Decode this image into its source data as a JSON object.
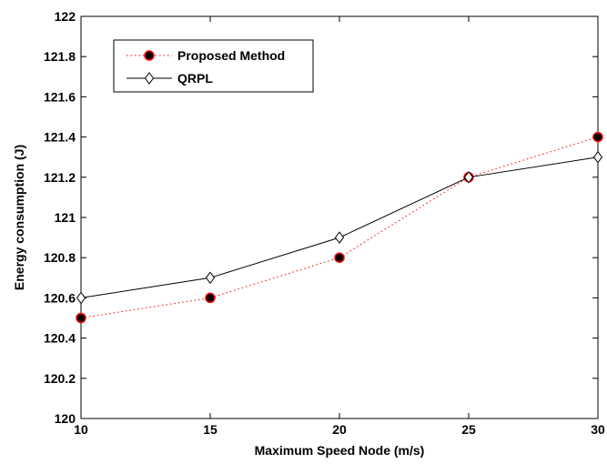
{
  "chart_data": {
    "type": "line",
    "title": "",
    "xlabel": "Maximum Speed Node (m/s)",
    "ylabel": "Energy consumption (J)",
    "x": [
      10,
      15,
      20,
      25,
      30
    ],
    "xlim": [
      10,
      30
    ],
    "ylim": [
      120,
      122
    ],
    "xticks": [
      "10",
      "15",
      "20",
      "25",
      "30"
    ],
    "yticks": [
      "120",
      "120.2",
      "120.4",
      "120.6",
      "120.8",
      "121",
      "121.2",
      "121.4",
      "121.6",
      "121.8",
      "122"
    ],
    "grid": false,
    "legend_position": "top-left",
    "series": [
      {
        "name": "Proposed Method",
        "values": [
          120.5,
          120.6,
          120.8,
          121.2,
          121.4
        ],
        "line_color": "#ff0000",
        "line_style": "dotted",
        "marker": "filled-circle",
        "marker_fill": "#000000",
        "marker_edge": "#ff0000"
      },
      {
        "name": "QRPL",
        "values": [
          120.6,
          120.7,
          120.9,
          121.2,
          121.3
        ],
        "line_color": "#000000",
        "line_style": "solid",
        "marker": "open-diamond",
        "marker_fill": "#ffffff",
        "marker_edge": "#000000"
      }
    ]
  }
}
